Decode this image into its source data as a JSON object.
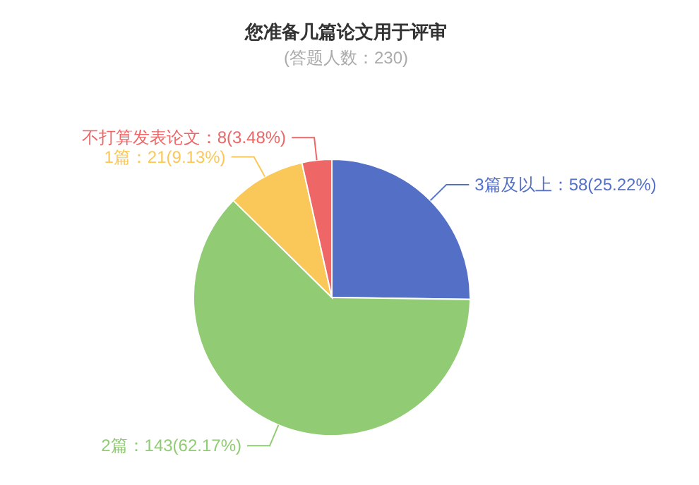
{
  "chart_data": {
    "type": "pie",
    "title": "您准备几篇论文用于评审",
    "subtitle": "(答题人数：230)",
    "categories": [
      "3篇及以上",
      "2篇",
      "1篇",
      "不打算发表论文"
    ],
    "values": [
      58,
      143,
      21,
      8
    ],
    "value_labels": [
      "58(25.22%)",
      "143(62.17%)",
      "21(9.13%)",
      "8(3.48%)"
    ],
    "colors": [
      "#5470c6",
      "#91cc75",
      "#fac858",
      "#ee6666"
    ]
  }
}
